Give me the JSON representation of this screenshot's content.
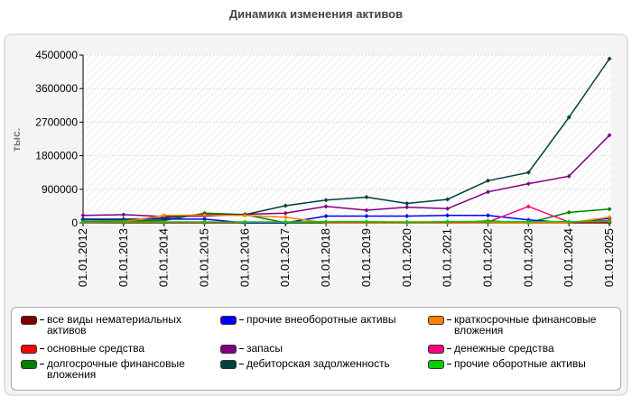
{
  "chart_data": {
    "type": "line",
    "title": "Динамика изменения активов",
    "y_label": "тыс.",
    "x": [
      "01.01.2012",
      "01.01.2013",
      "01.01.2014",
      "01.01.2015",
      "01.01.2016",
      "01.01.2017",
      "01.01.2018",
      "01.01.2019",
      "01.01.2020",
      "01.01.2021",
      "01.01.2022",
      "01.01.2023",
      "01.01.2024",
      "01.01.2025"
    ],
    "ylim": [
      0,
      4500000
    ],
    "yticks": [
      0,
      900000,
      1800000,
      2700000,
      3600000,
      4500000
    ],
    "grid": true,
    "series": [
      {
        "name": "все виды нематериальных активов",
        "color": "#800000",
        "values": [
          0,
          0,
          0,
          0,
          0,
          0,
          0,
          0,
          0,
          0,
          0,
          0,
          0,
          0
        ]
      },
      {
        "name": "основные средства",
        "color": "#ff0000",
        "values": [
          10000,
          10000,
          10000,
          10000,
          10000,
          10000,
          10000,
          10000,
          10000,
          10000,
          10000,
          10000,
          20000,
          30000
        ]
      },
      {
        "name": "долгосрочные финансовые вложения",
        "color": "#008000",
        "values": [
          30000,
          50000,
          60000,
          260000,
          220000,
          0,
          0,
          0,
          0,
          0,
          50000,
          0,
          280000,
          370000
        ]
      },
      {
        "name": "прочие внеоборотные активы",
        "color": "#0000ff",
        "values": [
          100000,
          100000,
          100000,
          100000,
          0,
          0,
          180000,
          180000,
          180000,
          200000,
          200000,
          80000,
          0,
          120000
        ]
      },
      {
        "name": "запасы",
        "color": "#800080",
        "values": [
          200000,
          220000,
          170000,
          180000,
          230000,
          260000,
          440000,
          340000,
          420000,
          380000,
          830000,
          1050000,
          1250000,
          2350000
        ]
      },
      {
        "name": "дебиторская задолженность",
        "color": "#004040",
        "values": [
          80000,
          90000,
          130000,
          230000,
          220000,
          460000,
          610000,
          690000,
          520000,
          630000,
          1130000,
          1350000,
          2830000,
          4400000
        ]
      },
      {
        "name": "краткосрочные финансовые вложения",
        "color": "#ff8000",
        "values": [
          0,
          30000,
          200000,
          210000,
          200000,
          150000,
          0,
          0,
          0,
          0,
          0,
          0,
          0,
          150000
        ]
      },
      {
        "name": "денежные средства",
        "color": "#ff0080",
        "values": [
          10000,
          20000,
          20000,
          20000,
          20000,
          20000,
          20000,
          20000,
          20000,
          20000,
          20000,
          440000,
          20000,
          60000
        ]
      },
      {
        "name": "прочие оборотные активы",
        "color": "#00cc00",
        "values": [
          20000,
          20000,
          20000,
          20000,
          20000,
          20000,
          30000,
          30000,
          20000,
          30000,
          30000,
          30000,
          30000,
          40000
        ]
      }
    ]
  }
}
